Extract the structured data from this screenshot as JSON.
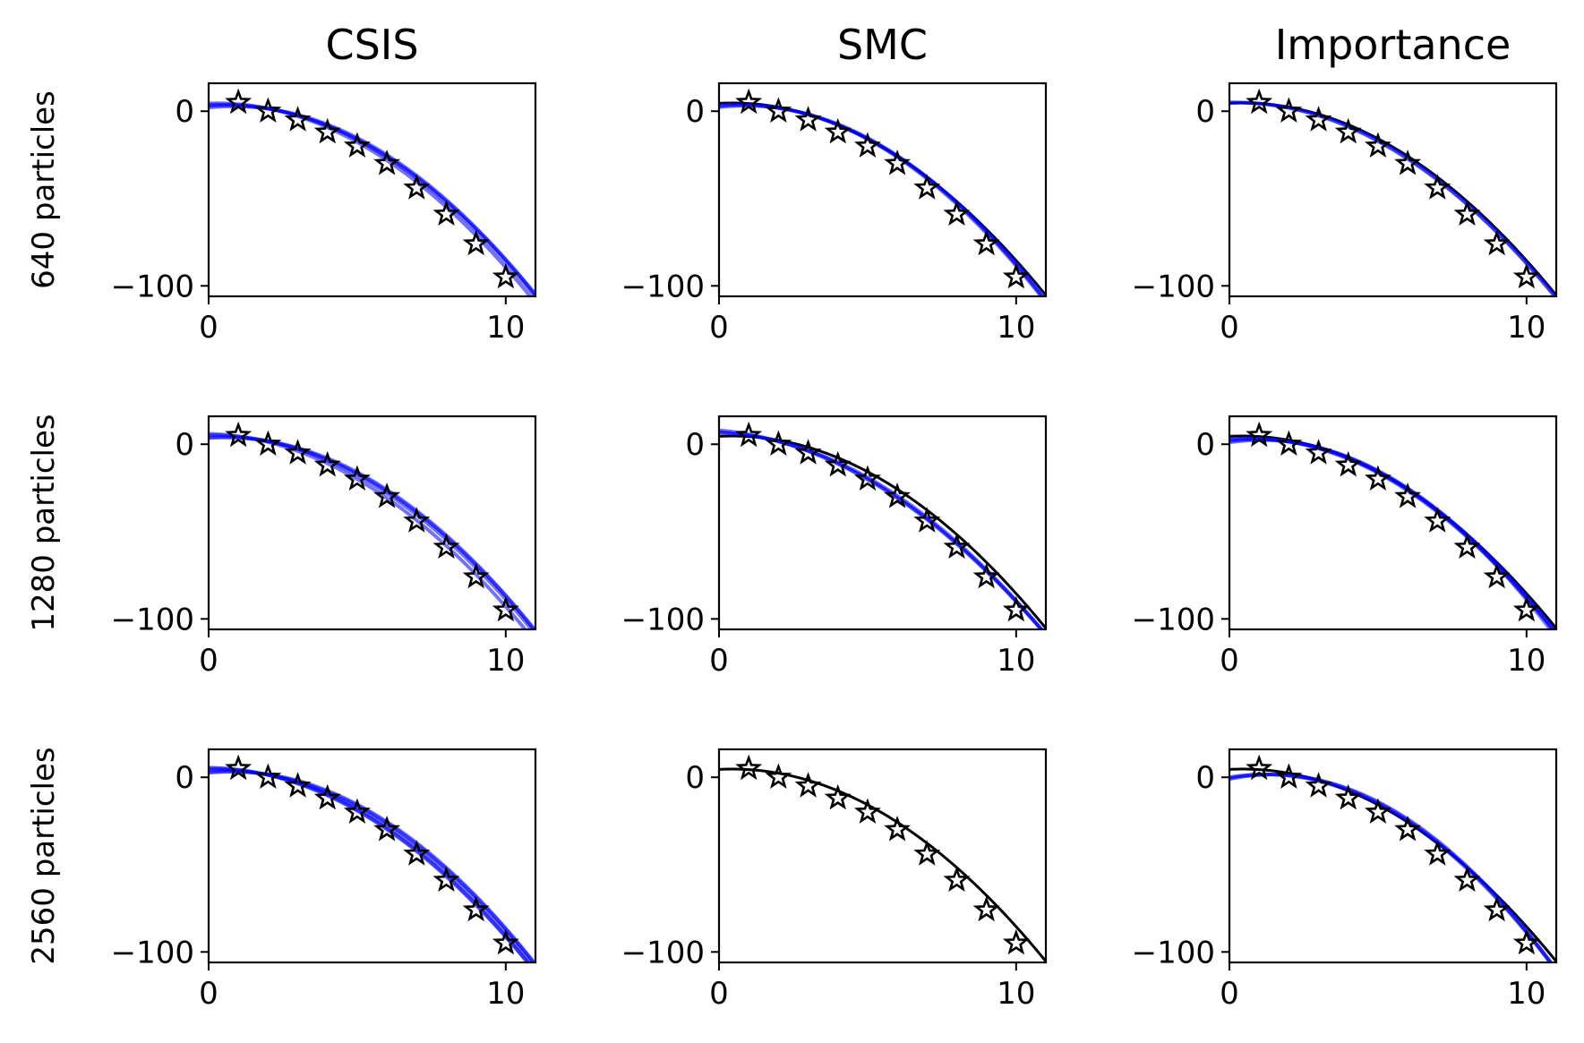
{
  "figure": {
    "column_titles": [
      "CSIS",
      "SMC",
      "Importance"
    ],
    "row_labels": [
      "640 particles",
      "1280 particles",
      "2560 particles"
    ],
    "colors": {
      "true_curve": "#000000",
      "posterior_samples": "#0000ff",
      "observations": "#000000"
    }
  },
  "chart_data": {
    "type": "line",
    "layout": "3x3 small multiples",
    "x_ticks": [
      0,
      10
    ],
    "y_ticks": [
      0,
      -100
    ],
    "xlim": [
      0,
      11
    ],
    "ylim": [
      -106,
      16
    ],
    "grid": false,
    "observations": {
      "marker": "star",
      "x": [
        1,
        2,
        3,
        4,
        5,
        6,
        7,
        8,
        9,
        10
      ],
      "y": [
        5,
        0,
        -5,
        -12,
        -20,
        -30,
        -44,
        -59,
        -76,
        -95
      ]
    },
    "true_curve": {
      "form": "quadratic",
      "coefficients": [
        4.5,
        0.9,
        -0.99
      ]
    },
    "panels": [
      {
        "row": "640 particles",
        "column": "CSIS",
        "true_curve_shown": false,
        "posterior_curves": [
          [
            3.0,
            1.2,
            -1.0
          ],
          [
            4.5,
            0.5,
            -0.99
          ],
          [
            2.0,
            1.8,
            -1.05
          ],
          [
            3.6,
            1.0,
            -1.0
          ]
        ]
      },
      {
        "row": "640 particles",
        "column": "SMC",
        "true_curve_shown": true,
        "posterior_curves": [
          [
            3.0,
            1.5,
            -1.05
          ],
          [
            2.2,
            2.0,
            -1.1
          ],
          [
            3.4,
            1.4,
            -1.06
          ]
        ]
      },
      {
        "row": "640 particles",
        "column": "Importance",
        "true_curve_shown": true,
        "posterior_curves": [
          [
            5.0,
            0.3,
            -0.95
          ],
          [
            4.8,
            0.6,
            -0.98
          ]
        ]
      },
      {
        "row": "1280 particles",
        "column": "CSIS",
        "true_curve_shown": false,
        "posterior_curves": [
          [
            6.0,
            -0.5,
            -0.94
          ],
          [
            4.0,
            0.8,
            -0.99
          ],
          [
            5.2,
            0.2,
            -0.96
          ],
          [
            3.5,
            1.2,
            -1.02
          ]
        ]
      },
      {
        "row": "1280 particles",
        "column": "SMC",
        "true_curve_shown": true,
        "posterior_curves": [
          [
            8.0,
            -1.5,
            -0.83
          ],
          [
            6.5,
            -0.6,
            -0.9
          ],
          [
            7.0,
            -1.0,
            -0.87
          ]
        ]
      },
      {
        "row": "1280 particles",
        "column": "Importance",
        "true_curve_shown": true,
        "posterior_curves": [
          [
            1.0,
            2.5,
            -1.15
          ],
          [
            2.5,
            1.6,
            -1.06
          ],
          [
            1.8,
            2.1,
            -1.1
          ],
          [
            3.0,
            1.3,
            -1.04
          ]
        ]
      },
      {
        "row": "2560 particles",
        "column": "CSIS",
        "true_curve_shown": false,
        "posterior_curves": [
          [
            5.5,
            -0.2,
            -0.95
          ],
          [
            3.0,
            1.3,
            -1.03
          ],
          [
            4.2,
            0.6,
            -0.99
          ],
          [
            2.5,
            1.7,
            -1.06
          ],
          [
            5.0,
            0.1,
            -0.97
          ]
        ]
      },
      {
        "row": "2560 particles",
        "column": "SMC",
        "true_curve_shown": true,
        "posterior_curves": []
      },
      {
        "row": "2560 particles",
        "column": "Importance",
        "true_curve_shown": true,
        "posterior_curves": [
          [
            -1.0,
            3.5,
            -1.22
          ],
          [
            0.0,
            2.8,
            -1.17
          ],
          [
            -0.5,
            3.2,
            -1.2
          ]
        ]
      }
    ]
  }
}
